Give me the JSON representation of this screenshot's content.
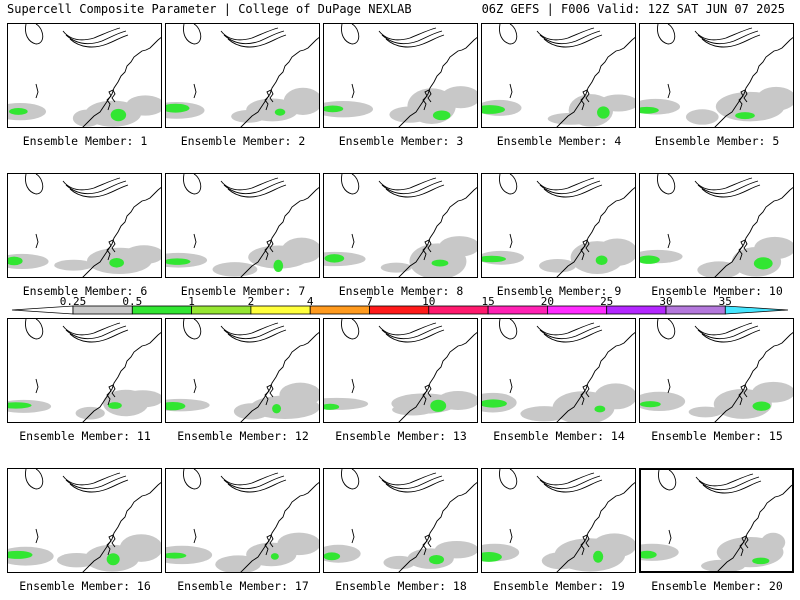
{
  "header": {
    "left_title": "Supercell Composite Parameter | College of DuPage NEXLAB",
    "right_title": "06Z GEFS | F006 Valid: 12Z SAT JUN 07 2025"
  },
  "colorbar": {
    "levels": [
      "0.25",
      "0.5",
      "1",
      "2",
      "4",
      "7",
      "10",
      "15",
      "20",
      "25",
      "30",
      "35"
    ],
    "colors": [
      "#c8c8c8",
      "#32e632",
      "#96e632",
      "#ffff3c",
      "#ff9a1e",
      "#ff1a1a",
      "#ff1a6e",
      "#ff22b4",
      "#ff2cff",
      "#b428ff",
      "#b478dc",
      "#46e6ff"
    ]
  },
  "colors": {
    "land_shade": "#c8c8c8",
    "green": "#32e632",
    "outline": "#000000"
  },
  "panels": [
    {
      "label": "Ensemble Member: 1",
      "selected": false
    },
    {
      "label": "Ensemble Member: 2",
      "selected": false
    },
    {
      "label": "Ensemble Member: 3",
      "selected": false
    },
    {
      "label": "Ensemble Member: 4",
      "selected": false
    },
    {
      "label": "Ensemble Member: 5",
      "selected": false
    },
    {
      "label": "Ensemble Member: 6",
      "selected": false
    },
    {
      "label": "Ensemble Member: 7",
      "selected": false
    },
    {
      "label": "Ensemble Member: 8",
      "selected": false
    },
    {
      "label": "Ensemble Member: 9",
      "selected": false
    },
    {
      "label": "Ensemble Member: 10",
      "selected": false
    },
    {
      "label": "Ensemble Member: 11",
      "selected": false
    },
    {
      "label": "Ensemble Member: 12",
      "selected": false
    },
    {
      "label": "Ensemble Member: 13",
      "selected": false
    },
    {
      "label": "Ensemble Member: 14",
      "selected": false
    },
    {
      "label": "Ensemble Member: 15",
      "selected": false
    },
    {
      "label": "Ensemble Member: 16",
      "selected": false
    },
    {
      "label": "Ensemble Member: 17",
      "selected": false
    },
    {
      "label": "Ensemble Member: 18",
      "selected": false
    },
    {
      "label": "Ensemble Member: 19",
      "selected": false
    },
    {
      "label": "Ensemble Member: 20",
      "selected": true
    }
  ]
}
